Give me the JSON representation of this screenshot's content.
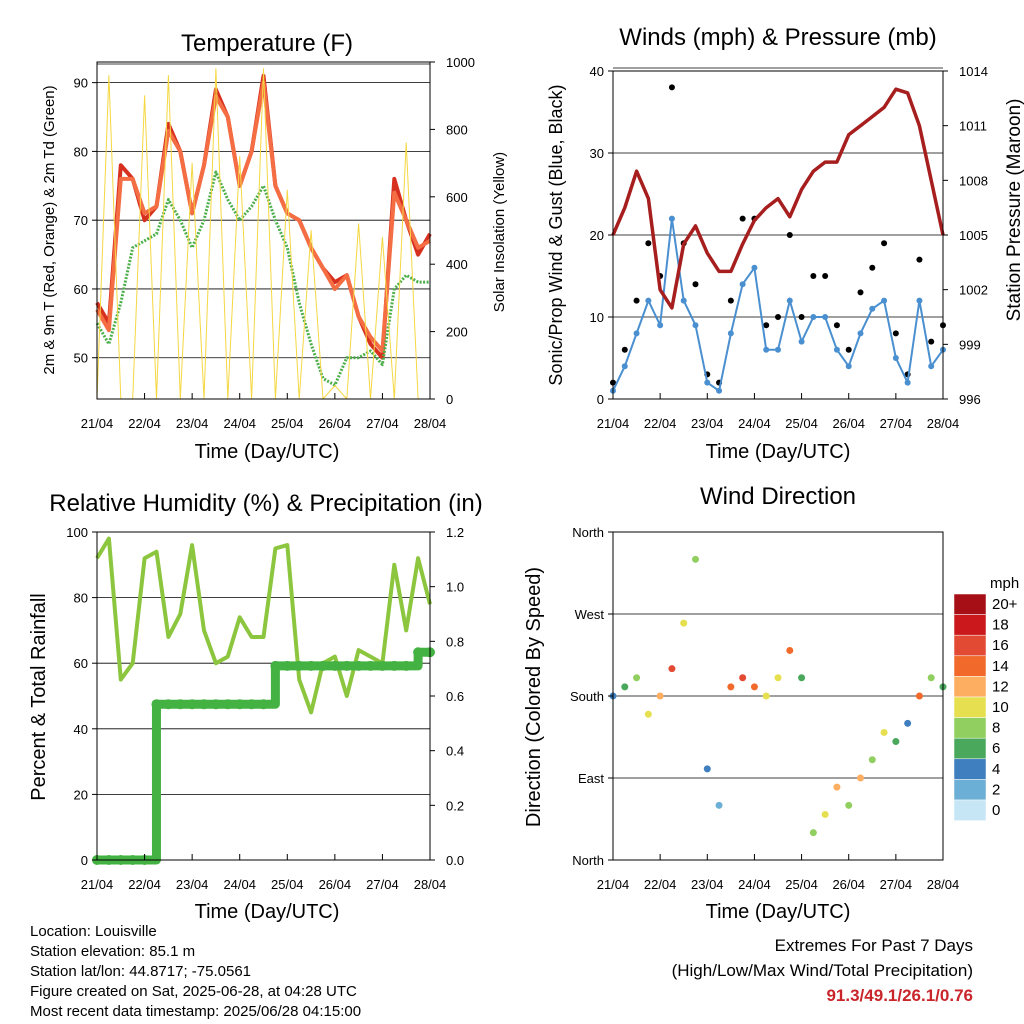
{
  "temp_chart": {
    "type": "line",
    "title": "Temperature (F)",
    "xlabel": "Time (Day/UTC)",
    "ylabel": "2m & 9m T (Red, Orange) & 2m Td (Green)",
    "ylabel2": "Solar Insolation (Yellow)",
    "x_ticks": [
      "21/04",
      "22/04",
      "23/04",
      "24/04",
      "25/04",
      "26/04",
      "27/04",
      "28/04"
    ],
    "y_ticks": [
      "50",
      "60",
      "70",
      "80",
      "90"
    ],
    "y2_ticks": [
      "0",
      "200",
      "400",
      "600",
      "800",
      "1000"
    ]
  },
  "wind_chart": {
    "type": "scatter",
    "title": "Winds (mph) & Pressure (mb)",
    "xlabel": "Time (Day/UTC)",
    "ylabel": "Sonic/Prop Wind & Gust (Blue, Black)",
    "ylabel2": "Station Pressure (Maroon)",
    "x_ticks": [
      "21/04",
      "22/04",
      "23/04",
      "24/04",
      "25/04",
      "26/04",
      "27/04",
      "28/04"
    ],
    "y_ticks": [
      "0",
      "10",
      "20",
      "30",
      "40"
    ],
    "y2_ticks": [
      "996",
      "999",
      "1002",
      "1005",
      "1008",
      "1011",
      "1014"
    ]
  },
  "rh_chart": {
    "type": "line",
    "title": "Relative Humidity (%) & Precipitation (in)",
    "xlabel": "Time (Day/UTC)",
    "ylabel": "Percent & Total Rainfall",
    "x_ticks": [
      "21/04",
      "22/04",
      "23/04",
      "24/04",
      "25/04",
      "26/04",
      "27/04",
      "28/04"
    ],
    "y_ticks": [
      "0",
      "20",
      "40",
      "60",
      "80",
      "100"
    ],
    "y2_ticks": [
      "0.0",
      "0.2",
      "0.4",
      "0.6",
      "0.8",
      "1.0",
      "1.2"
    ]
  },
  "dir_chart": {
    "type": "scatter",
    "title": "Wind Direction",
    "xlabel": "Time (Day/UTC)",
    "ylabel": "Direction (Colored By Speed)",
    "x_ticks": [
      "21/04",
      "22/04",
      "23/04",
      "24/04",
      "25/04",
      "26/04",
      "27/04",
      "28/04"
    ],
    "y_ticks": [
      "North",
      "East",
      "South",
      "West",
      "North"
    ],
    "legend_title": "mph",
    "legend_labels": [
      "20+",
      "18",
      "16",
      "14",
      "12",
      "10",
      "8",
      "6",
      "4",
      "2",
      "0"
    ],
    "legend_colors": [
      "#a50f15",
      "#cb181d",
      "#e34a33",
      "#f16a2c",
      "#fdae61",
      "#e6e050",
      "#91cf60",
      "#4aa85c",
      "#3f7fbf",
      "#6baed6",
      "#c6e6f6"
    ]
  },
  "chart_data": [
    {
      "type": "line",
      "title": "Temperature (F)",
      "xlabel": "Time (Day/UTC)",
      "ylabel": "2m & 9m T (Red, Orange) & 2m Td (Green)",
      "ylabel2": "Solar Insolation (Yellow)",
      "x": [
        0,
        0.25,
        0.5,
        0.75,
        1,
        1.25,
        1.5,
        1.75,
        2,
        2.25,
        2.5,
        2.75,
        3,
        3.25,
        3.5,
        3.75,
        4,
        4.25,
        4.5,
        4.75,
        5,
        5.25,
        5.5,
        5.75,
        6,
        6.25,
        6.5,
        6.75,
        7
      ],
      "ylim": [
        44,
        93
      ],
      "y2lim": [
        0,
        1000
      ],
      "series": [
        {
          "name": "2m T",
          "color": "#d7301f",
          "values": [
            58,
            55,
            78,
            76,
            70,
            72,
            84,
            80,
            71,
            78,
            89,
            85,
            75,
            80,
            91,
            75,
            71,
            70,
            66,
            63,
            61,
            62,
            56,
            52,
            50,
            76,
            70,
            65,
            68
          ]
        },
        {
          "name": "9m T",
          "color": "#f46d43",
          "values": [
            57,
            54,
            76,
            76,
            71,
            72,
            83,
            80,
            71,
            78,
            88,
            85,
            75,
            80,
            90,
            75,
            71,
            70,
            66,
            63,
            60,
            62,
            56,
            53,
            51,
            74,
            70,
            66,
            67
          ]
        },
        {
          "name": "2m Td",
          "color": "#4daf4a",
          "values": [
            55,
            52,
            58,
            66,
            67,
            68,
            73,
            70,
            66,
            70,
            77,
            73,
            70,
            72,
            75,
            70,
            66,
            58,
            52,
            47,
            46,
            50,
            50,
            51,
            49,
            60,
            62,
            61,
            61
          ]
        },
        {
          "name": "Solar Insolation",
          "color": "#f5d742",
          "values": [
            0,
            960,
            0,
            0,
            900,
            0,
            960,
            0,
            700,
            0,
            980,
            0,
            720,
            0,
            980,
            0,
            620,
            0,
            500,
            0,
            40,
            0,
            520,
            0,
            480,
            0,
            760,
            0,
            0
          ]
        }
      ]
    },
    {
      "type": "scatter",
      "title": "Winds (mph) & Pressure (mb)",
      "xlabel": "Time (Day/UTC)",
      "ylabel": "Sonic/Prop Wind & Gust (Blue, Black)",
      "ylabel2": "Station Pressure (Maroon)",
      "x": [
        0,
        0.25,
        0.5,
        0.75,
        1,
        1.25,
        1.5,
        1.75,
        2,
        2.25,
        2.5,
        2.75,
        3,
        3.25,
        3.5,
        3.75,
        4,
        4.25,
        4.5,
        4.75,
        5,
        5.25,
        5.5,
        5.75,
        6,
        6.25,
        6.5,
        6.75,
        7
      ],
      "ylim": [
        0,
        40
      ],
      "y2lim": [
        996,
        1014
      ],
      "series": [
        {
          "name": "Wind",
          "color": "#4a90d0",
          "values": [
            1,
            4,
            8,
            12,
            9,
            22,
            12,
            9,
            2,
            1,
            8,
            14,
            16,
            6,
            6,
            12,
            7,
            10,
            10,
            6,
            4,
            8,
            11,
            12,
            5,
            2,
            12,
            4,
            6
          ]
        },
        {
          "name": "Gust",
          "color": "#000000",
          "values": [
            2,
            6,
            12,
            19,
            15,
            38,
            19,
            14,
            3,
            2,
            12,
            22,
            22,
            9,
            10,
            20,
            10,
            15,
            15,
            9,
            6,
            13,
            16,
            19,
            8,
            3,
            17,
            7,
            9
          ]
        },
        {
          "name": "Pressure",
          "color": "#a61e1e",
          "values": [
            1005,
            1006.5,
            1008.5,
            1007,
            1002,
            1001,
            1004.5,
            1005.5,
            1004,
            1003,
            1003,
            1004.5,
            1005.8,
            1006.5,
            1007,
            1006,
            1007.5,
            1008.5,
            1009,
            1009,
            1010.5,
            1011,
            1011.5,
            1012,
            1013,
            1012.8,
            1011,
            1008,
            1005
          ]
        }
      ]
    },
    {
      "type": "line",
      "title": "Relative Humidity (%) & Precipitation (in)",
      "xlabel": "Time (Day/UTC)",
      "ylabel": "Percent & Total Rainfall",
      "x": [
        0,
        0.25,
        0.5,
        0.75,
        1,
        1.25,
        1.5,
        1.75,
        2,
        2.25,
        2.5,
        2.75,
        3,
        3.25,
        3.5,
        3.75,
        4,
        4.25,
        4.5,
        4.75,
        5,
        5.25,
        5.5,
        5.75,
        6,
        6.25,
        6.5,
        6.75,
        7
      ],
      "ylim": [
        0,
        100
      ],
      "y2lim": [
        0,
        1.2
      ],
      "series": [
        {
          "name": "RH",
          "color": "#8cc63f",
          "values": [
            92,
            98,
            55,
            60,
            92,
            94,
            68,
            75,
            96,
            70,
            60,
            62,
            74,
            68,
            68,
            95,
            96,
            55,
            45,
            60,
            62,
            50,
            64,
            62,
            60,
            90,
            70,
            92,
            78
          ]
        },
        {
          "name": "Total Rainfall",
          "color": "#43b242",
          "values": [
            0,
            0,
            0,
            0,
            0,
            0.57,
            0.57,
            0.57,
            0.57,
            0.57,
            0.57,
            0.57,
            0.57,
            0.57,
            0.57,
            0.71,
            0.71,
            0.71,
            0.71,
            0.71,
            0.71,
            0.71,
            0.71,
            0.71,
            0.71,
            0.71,
            0.71,
            0.76,
            0.76
          ]
        }
      ]
    },
    {
      "type": "scatter",
      "title": "Wind Direction",
      "xlabel": "Time (Day/UTC)",
      "ylabel": "Direction (Colored By Speed)",
      "x": [
        0,
        0.25,
        0.5,
        0.75,
        1,
        1.25,
        1.5,
        1.75,
        2,
        2.25,
        2.5,
        2.75,
        3,
        3.25,
        3.5,
        3.75,
        4,
        4.25,
        4.5,
        4.75,
        5,
        5.25,
        5.5,
        5.75,
        6,
        6.25,
        6.5,
        6.75,
        7
      ],
      "ylim": [
        0,
        360
      ],
      "series": [
        {
          "name": "Direction",
          "values": [
            180,
            190,
            200,
            160,
            180,
            210,
            260,
            330,
            100,
            60,
            190,
            200,
            190,
            180,
            200,
            230,
            200,
            30,
            50,
            80,
            60,
            90,
            110,
            140,
            130,
            150,
            180,
            200,
            190
          ]
        },
        {
          "name": "Speed",
          "values": [
            2,
            4,
            6,
            8,
            10,
            15,
            8,
            6,
            2,
            1,
            12,
            14,
            12,
            8,
            8,
            12,
            5,
            6,
            8,
            10,
            6,
            10,
            6,
            8,
            4,
            2,
            12,
            6,
            4
          ]
        }
      ]
    }
  ],
  "info": {
    "location": "Location: Louisville",
    "elevation": "Station elevation: 85.1 m",
    "latlon": "Station lat/lon: 44.8717; -75.0561",
    "created": "Figure created on Sat, 2025-06-28, at 04:28 UTC",
    "recent": "Most recent data timestamp: 2025/06/28 04:15:00"
  },
  "extremes": {
    "title": "Extremes For Past 7 Days",
    "subtitle": "(High/Low/Max Wind/Total Precipitation)",
    "values": "91.3/49.1/26.1/0.76"
  }
}
